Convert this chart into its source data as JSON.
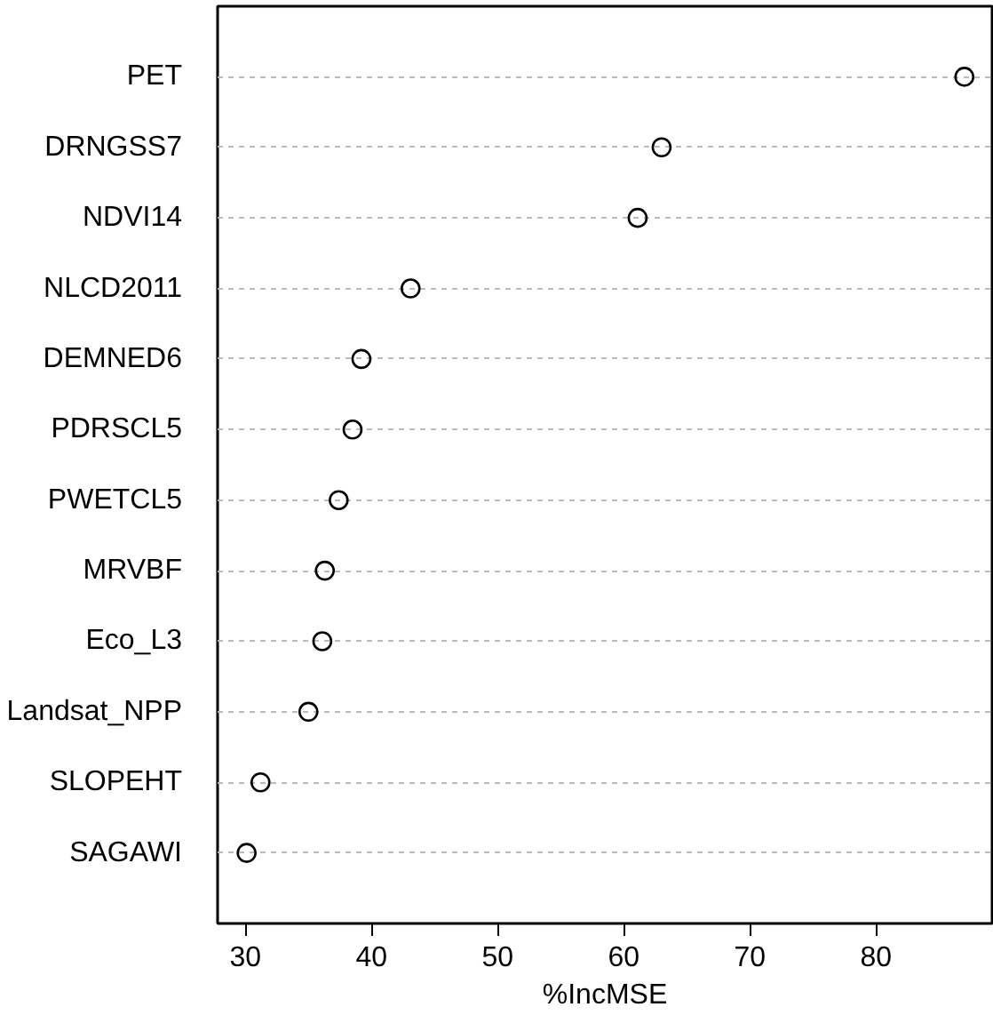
{
  "chart_data": {
    "type": "scatter",
    "orientation": "horizontal",
    "xlabel": "%IncMSE",
    "categories": [
      "PET",
      "DRNGSS7",
      "NDVI14",
      "NLCD2011",
      "DEMNED6",
      "PDRSCL5",
      "PWETCL5",
      "MRVBF",
      "Eco_L3",
      "Landsat_NPP",
      "SLOPEHT",
      "SAGAWI"
    ],
    "values": [
      87.0,
      63.0,
      61.1,
      43.1,
      39.2,
      38.5,
      37.4,
      36.3,
      36.1,
      35.0,
      31.2,
      30.1
    ],
    "color": "#000000",
    "marker": "circle",
    "xlim": [
      27.8,
      89.2
    ],
    "xticks": [
      30,
      40,
      50,
      60,
      70,
      80
    ],
    "grid": "y"
  }
}
